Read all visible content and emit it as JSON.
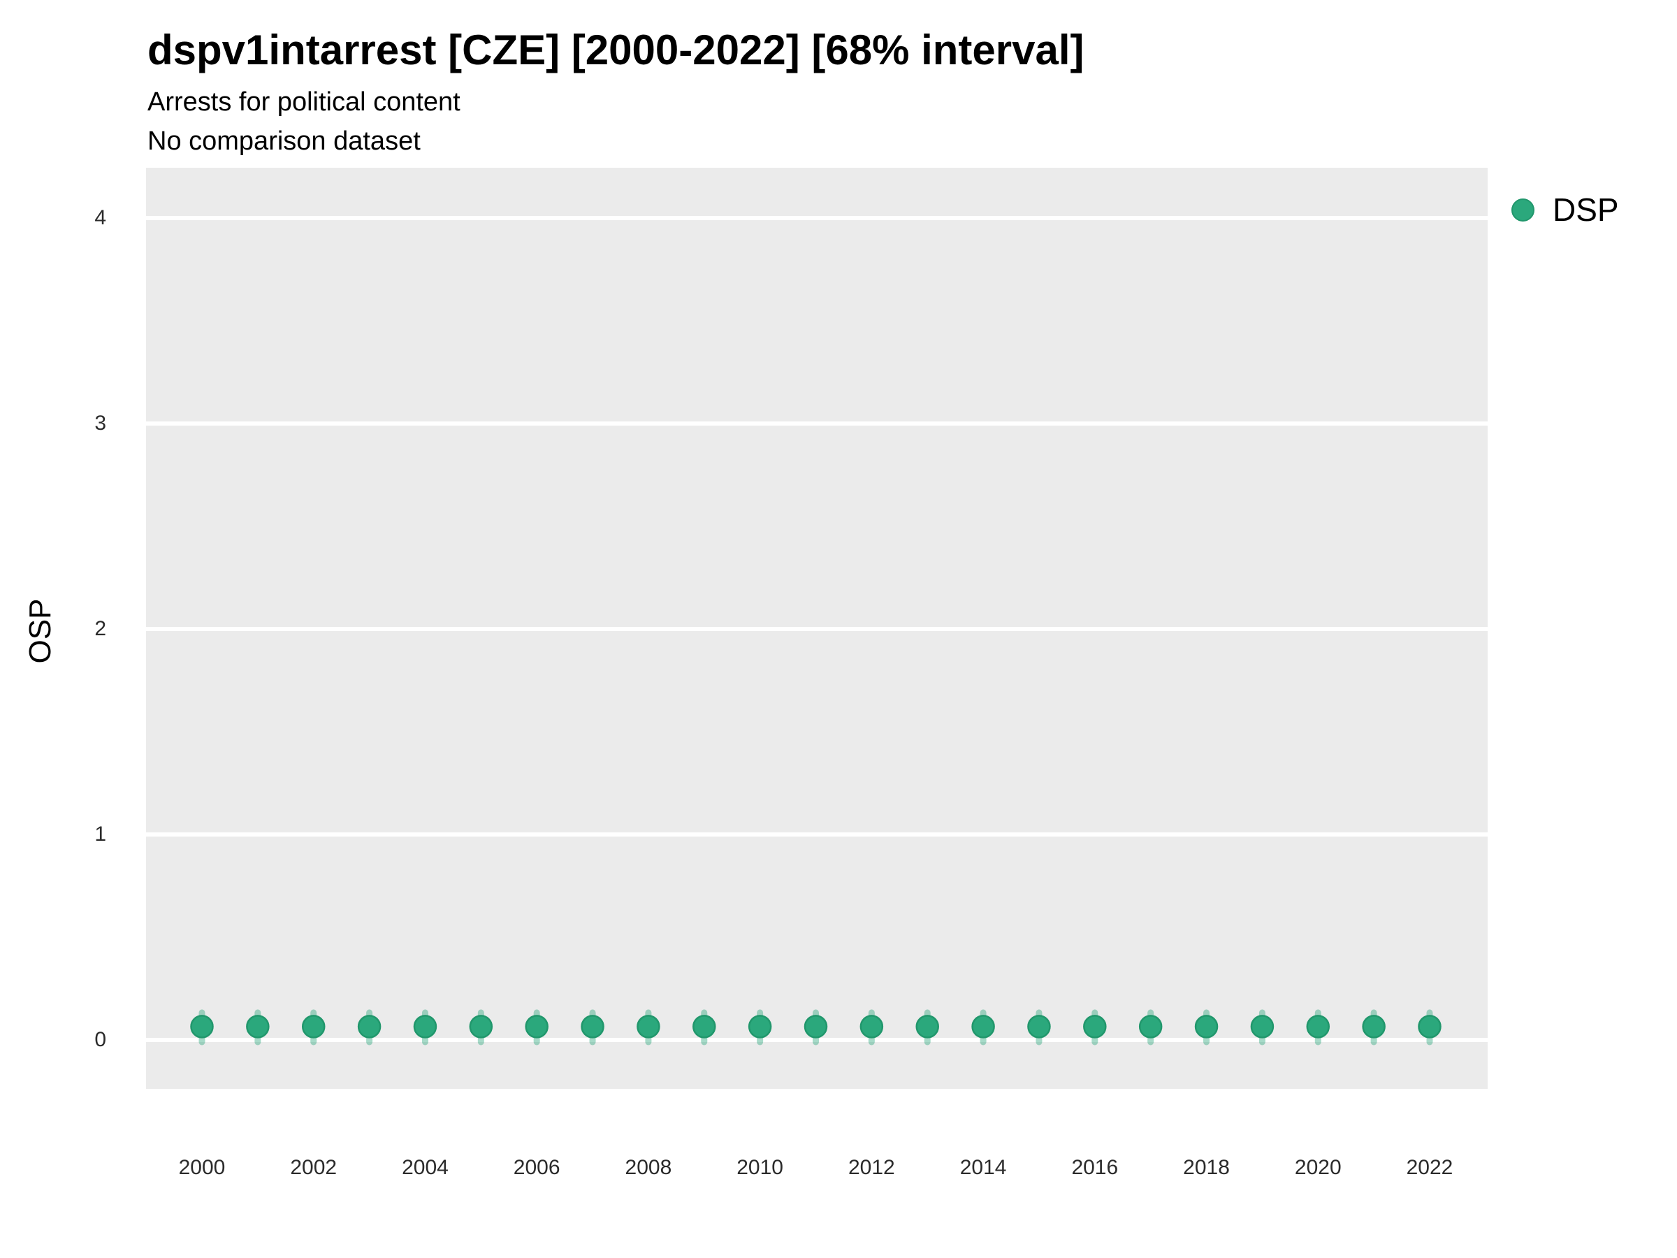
{
  "header": {
    "title": "dspv1intarrest [CZE] [2000-2022] [68% interval]",
    "subtitle_line1": "Arrests for political content",
    "subtitle_line2": "No comparison dataset"
  },
  "legend": {
    "position": "right",
    "items": [
      {
        "label": "DSP",
        "marker": "circle-icon",
        "color": "#2BA87C"
      }
    ]
  },
  "colors": {
    "accent_green": "#2BA87C",
    "accent_green_edge": "#21976C",
    "interval_green_alpha": 0.42,
    "panel_background": "#EBEBEB",
    "gridline": "#FFFFFF",
    "tick_text": "#2b2b2b",
    "title_text": "#000000"
  },
  "chart_data": {
    "type": "scatter",
    "title": "dspv1intarrest [CZE] [2000-2022] [68% interval]",
    "subtitle": [
      "Arrests for political content",
      "No comparison dataset"
    ],
    "xlabel": "",
    "ylabel": "OSP",
    "interval_level": "68%",
    "grid": "horizontal-major-only",
    "legend_position": "right",
    "ylim": [
      -0.24,
      4.25
    ],
    "yticks": [
      {
        "value": 0,
        "label": "0"
      },
      {
        "value": 1,
        "label": "1"
      },
      {
        "value": 2,
        "label": "2"
      },
      {
        "value": 3,
        "label": "3"
      },
      {
        "value": 4,
        "label": "4"
      }
    ],
    "xticks": [
      {
        "value": 2000,
        "label": "2000"
      },
      {
        "value": 2002,
        "label": "2002"
      },
      {
        "value": 2004,
        "label": "2004"
      },
      {
        "value": 2006,
        "label": "2006"
      },
      {
        "value": 2008,
        "label": "2008"
      },
      {
        "value": 2010,
        "label": "2010"
      },
      {
        "value": 2012,
        "label": "2012"
      },
      {
        "value": 2014,
        "label": "2014"
      },
      {
        "value": 2016,
        "label": "2016"
      },
      {
        "value": 2018,
        "label": "2018"
      },
      {
        "value": 2020,
        "label": "2020"
      },
      {
        "value": 2022,
        "label": "2022"
      }
    ],
    "x": [
      2000,
      2001,
      2002,
      2003,
      2004,
      2005,
      2006,
      2007,
      2008,
      2009,
      2010,
      2011,
      2012,
      2013,
      2014,
      2015,
      2016,
      2017,
      2018,
      2019,
      2020,
      2021,
      2022
    ],
    "series": [
      {
        "name": "DSP",
        "values": [
          0.065,
          0.065,
          0.065,
          0.065,
          0.065,
          0.065,
          0.065,
          0.065,
          0.065,
          0.065,
          0.065,
          0.065,
          0.065,
          0.065,
          0.065,
          0.065,
          0.065,
          0.065,
          0.065,
          0.065,
          0.065,
          0.065,
          0.065
        ],
        "interval_low": [
          -0.01,
          -0.01,
          -0.01,
          -0.01,
          -0.01,
          -0.01,
          -0.01,
          -0.01,
          -0.01,
          -0.01,
          -0.01,
          -0.01,
          -0.01,
          -0.01,
          -0.01,
          -0.01,
          -0.01,
          -0.01,
          -0.01,
          -0.01,
          -0.01,
          -0.01,
          -0.01
        ],
        "interval_high": [
          0.133,
          0.133,
          0.133,
          0.133,
          0.133,
          0.133,
          0.133,
          0.133,
          0.133,
          0.133,
          0.133,
          0.133,
          0.133,
          0.133,
          0.133,
          0.133,
          0.133,
          0.133,
          0.133,
          0.133,
          0.133,
          0.133,
          0.133
        ]
      }
    ]
  }
}
